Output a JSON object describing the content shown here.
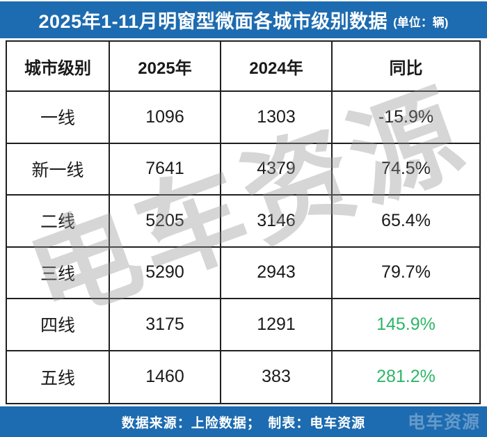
{
  "title": {
    "text": "2025年1-11月明窗型微面各城市级别数据",
    "unit": "(单位：辆)"
  },
  "colors": {
    "bar_blue": "#1d6bb0",
    "positive_green": "#2db567",
    "default_text": "#1a1a1a",
    "border": "#1f1f1f"
  },
  "table": {
    "columns": [
      "城市级别",
      "2025年",
      "2024年",
      "同比"
    ],
    "rows": [
      {
        "level": "一线",
        "y2025": "1096",
        "y2024": "1303",
        "yoy": "-15.9%",
        "yoy_color": "#1a1a1a"
      },
      {
        "level": "新一线",
        "y2025": "7641",
        "y2024": "4379",
        "yoy": "74.5%",
        "yoy_color": "#1a1a1a"
      },
      {
        "level": "二线",
        "y2025": "5205",
        "y2024": "3146",
        "yoy": "65.4%",
        "yoy_color": "#1a1a1a"
      },
      {
        "level": "三线",
        "y2025": "5290",
        "y2024": "2943",
        "yoy": "79.7%",
        "yoy_color": "#1a1a1a"
      },
      {
        "level": "四线",
        "y2025": "3175",
        "y2024": "1291",
        "yoy": "145.9%",
        "yoy_color": "#2db567"
      },
      {
        "level": "五线",
        "y2025": "1460",
        "y2024": "383",
        "yoy": "281.2%",
        "yoy_color": "#2db567"
      }
    ]
  },
  "watermark": {
    "text": "电车资源"
  },
  "footer": {
    "text": "数据来源：上险数据；　制表：电车资源",
    "watermark": "电车资源"
  },
  "chart_data": {
    "type": "table",
    "title": "2025年1-11月明窗型微面各城市级别数据（单位：辆）",
    "columns": [
      "城市级别",
      "2025年",
      "2024年",
      "同比"
    ],
    "rows": [
      [
        "一线",
        1096,
        1303,
        "-15.9%"
      ],
      [
        "新一线",
        7641,
        4379,
        "74.5%"
      ],
      [
        "二线",
        5205,
        3146,
        "65.4%"
      ],
      [
        "三线",
        5290,
        2943,
        "79.7%"
      ],
      [
        "四线",
        3175,
        1291,
        "145.9%"
      ],
      [
        "五线",
        1460,
        383,
        "281.2%"
      ]
    ],
    "source_note": "数据来源：上险数据",
    "producer_note": "制表：电车资源"
  }
}
